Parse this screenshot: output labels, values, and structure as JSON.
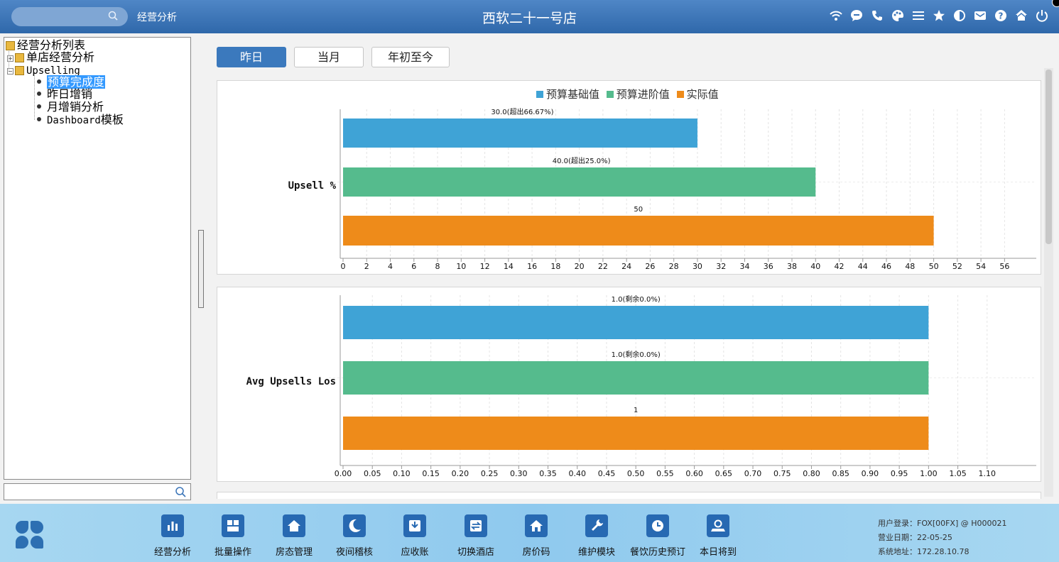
{
  "header": {
    "app_title": "经营分析",
    "store_title": "西软二十一号店",
    "icons": [
      "wifi-icon",
      "chat-icon",
      "phone-icon",
      "palette-icon",
      "menu-icon",
      "star-icon",
      "contrast-icon",
      "mail-icon",
      "help-icon",
      "home-icon",
      "power-icon"
    ]
  },
  "tree": {
    "root": "经营分析列表",
    "node_single_store": "单店经营分析",
    "node_upselling": "Upselling",
    "leaf_budget": "预算完成度",
    "leaf_yesterday": "昨日增销",
    "leaf_monthly": "月增销分析",
    "leaf_dashboard_en": "Dashboard",
    "leaf_dashboard_cn": "模板"
  },
  "tabs": {
    "yesterday": "昨日",
    "month": "当月",
    "ytd": "年初至今",
    "active": "yesterday"
  },
  "legend": [
    "预算基础值",
    "预算进阶值",
    "实际值"
  ],
  "colors": {
    "base": "#3fa3d6",
    "advanced": "#55bb8d",
    "actual": "#ee8b1a",
    "topbar": "#3a74b8"
  },
  "chart_data": [
    {
      "type": "bar",
      "orientation": "horizontal",
      "category": "Upsell %",
      "series": [
        {
          "name": "预算基础值",
          "value": 30,
          "label": "30.0(超出66.67%)"
        },
        {
          "name": "预算进阶值",
          "value": 40,
          "label": "40.0(超出25.0%)"
        },
        {
          "name": "实际值",
          "value": 50,
          "label": "50"
        }
      ],
      "xlim": [
        0,
        57
      ],
      "xticks": [
        "0",
        "2",
        "4",
        "6",
        "8",
        "10",
        "12",
        "14",
        "16",
        "18",
        "20",
        "22",
        "24",
        "26",
        "28",
        "30",
        "32",
        "34",
        "36",
        "38",
        "40",
        "42",
        "44",
        "46",
        "48",
        "50",
        "52",
        "54",
        "56"
      ],
      "grid": true
    },
    {
      "type": "bar",
      "orientation": "horizontal",
      "category": "Avg Upsells Los",
      "series": [
        {
          "name": "预算基础值",
          "value": 1.0,
          "label": "1.0(剩余0.0%)"
        },
        {
          "name": "预算进阶值",
          "value": 1.0,
          "label": "1.0(剩余0.0%)"
        },
        {
          "name": "实际值",
          "value": 1,
          "label": "1"
        }
      ],
      "xlim": [
        0,
        1.15
      ],
      "xticks": [
        "0.00",
        "0.05",
        "0.10",
        "0.15",
        "0.20",
        "0.25",
        "0.30",
        "0.35",
        "0.40",
        "0.45",
        "0.50",
        "0.55",
        "0.60",
        "0.65",
        "0.70",
        "0.75",
        "0.80",
        "0.85",
        "0.90",
        "0.95",
        "1.00",
        "1.05",
        "1.10"
      ],
      "grid": true
    }
  ],
  "bottom_nav": [
    "经营分析",
    "批量操作",
    "房态管理",
    "夜间稽核",
    "应收账",
    "切换酒店",
    "房价码",
    "维护模块",
    "餐饮历史预订",
    "本日将到"
  ],
  "status": {
    "login": "用户登录：FOX[00FX] @ H000021",
    "biz_date": "营业日期：22-05-25",
    "address": "系统地址：172.28.10.78"
  }
}
